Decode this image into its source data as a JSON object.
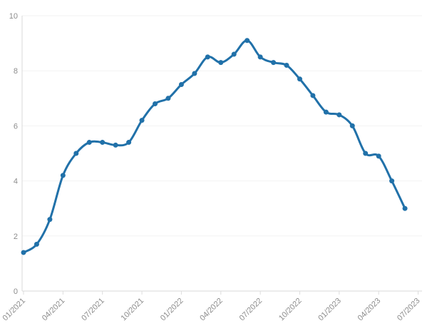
{
  "chart_data": {
    "type": "line",
    "title": "",
    "xlabel": "",
    "ylabel": "",
    "legend": "none",
    "grid": true,
    "ylim": [
      0,
      10
    ],
    "yticks": [
      0,
      2,
      4,
      6,
      8,
      10
    ],
    "line_color": "#2171a9",
    "marker": "circle",
    "categories": [
      "01/2021",
      "02/2021",
      "03/2021",
      "04/2021",
      "05/2021",
      "06/2021",
      "07/2021",
      "08/2021",
      "09/2021",
      "10/2021",
      "11/2021",
      "12/2021",
      "01/2022",
      "02/2022",
      "03/2022",
      "04/2022",
      "05/2022",
      "06/2022",
      "07/2022",
      "08/2022",
      "09/2022",
      "10/2022",
      "11/2022",
      "12/2022",
      "01/2023",
      "02/2023",
      "03/2023",
      "04/2023",
      "05/2023",
      "06/2023"
    ],
    "values": [
      1.4,
      1.7,
      2.6,
      4.2,
      5.0,
      5.4,
      5.4,
      5.3,
      5.4,
      6.2,
      6.8,
      7.0,
      7.5,
      7.9,
      8.5,
      8.3,
      8.6,
      9.1,
      8.5,
      8.3,
      8.2,
      7.7,
      7.1,
      6.5,
      6.4,
      6.0,
      5.0,
      4.9,
      4.0,
      3.0
    ],
    "x_tick_positions": [
      0,
      3,
      6,
      9,
      12,
      15,
      18,
      21,
      24,
      27,
      30
    ],
    "x_tick_labels": [
      "01/2021",
      "04/2021",
      "07/2021",
      "10/2021",
      "01/2022",
      "04/2022",
      "07/2022",
      "10/2022",
      "01/2023",
      "04/2023",
      "07/2023"
    ],
    "colors": {
      "gridline": "#f2f2f2",
      "axis_line": "#d9d9d9",
      "tick_mark": "#dddddd",
      "tick_label": "#8c8c8c"
    }
  }
}
